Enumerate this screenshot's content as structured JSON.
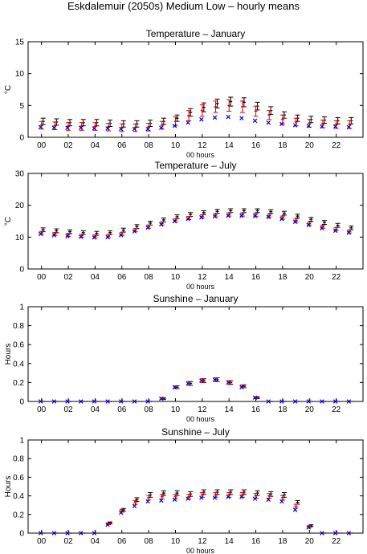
{
  "figure": {
    "title": "Eskdalemuir (2050s) Medium Low – hourly means"
  },
  "legend_colors": {
    "black": "#000000",
    "red": "#e00000",
    "blue": "#0000e0"
  },
  "chart_data": [
    {
      "type": "scatter",
      "title": "Temperature – January",
      "xlabel": "00 hours",
      "ylabel": "°C",
      "xlim": [
        -1,
        24
      ],
      "ylim": [
        0,
        15
      ],
      "yticks": [
        0,
        5,
        10,
        15
      ],
      "xticks": [
        "00",
        "02",
        "04",
        "06",
        "08",
        "10",
        "12",
        "14",
        "16",
        "18",
        "20",
        "22"
      ],
      "x": [
        0,
        1,
        2,
        3,
        4,
        5,
        6,
        7,
        8,
        9,
        10,
        11,
        12,
        13,
        14,
        15,
        16,
        17,
        18,
        19,
        20,
        21,
        22,
        23
      ],
      "series": [
        {
          "color": "black",
          "marker": "errorbar",
          "values": [
            2.5,
            2.4,
            2.3,
            2.3,
            2.3,
            2.2,
            2.1,
            2.1,
            2.2,
            2.5,
            3.0,
            3.9,
            4.7,
            5.3,
            5.6,
            5.5,
            4.9,
            4.2,
            3.5,
            3.0,
            2.8,
            2.7,
            2.6,
            2.6
          ],
          "errors": [
            0.5,
            0.5,
            0.5,
            0.5,
            0.5,
            0.5,
            0.5,
            0.5,
            0.5,
            0.5,
            0.5,
            0.6,
            0.7,
            0.7,
            0.7,
            0.7,
            0.6,
            0.6,
            0.5,
            0.5,
            0.5,
            0.5,
            0.5,
            0.5
          ]
        },
        {
          "color": "red",
          "marker": "errorbar",
          "values": [
            1.9,
            1.8,
            1.7,
            1.7,
            1.7,
            1.6,
            1.5,
            1.5,
            1.6,
            1.9,
            2.5,
            3.4,
            4.2,
            4.8,
            5.0,
            4.8,
            4.1,
            3.5,
            2.8,
            2.4,
            2.2,
            2.1,
            2.0,
            2.0
          ],
          "errors": [
            0.6,
            0.6,
            0.6,
            0.6,
            0.6,
            0.6,
            0.6,
            0.6,
            0.6,
            0.6,
            0.7,
            0.8,
            0.9,
            0.9,
            0.9,
            0.9,
            0.8,
            0.7,
            0.7,
            0.6,
            0.6,
            0.6,
            0.6,
            0.6
          ]
        },
        {
          "color": "blue",
          "marker": "x",
          "values": [
            1.6,
            1.5,
            1.5,
            1.5,
            1.4,
            1.4,
            1.3,
            1.3,
            1.3,
            1.5,
            1.8,
            2.3,
            2.8,
            3.1,
            3.2,
            3.0,
            2.6,
            2.3,
            2.1,
            1.9,
            1.8,
            1.7,
            1.7,
            1.6
          ]
        }
      ]
    },
    {
      "type": "scatter",
      "title": "Temperature – July",
      "xlabel": "00 hours",
      "ylabel": "°C",
      "xlim": [
        -1,
        24
      ],
      "ylim": [
        0,
        30
      ],
      "yticks": [
        0,
        10,
        20,
        30
      ],
      "xticks": [
        "00",
        "02",
        "04",
        "06",
        "08",
        "10",
        "12",
        "14",
        "16",
        "18",
        "20",
        "22"
      ],
      "x": [
        0,
        1,
        2,
        3,
        4,
        5,
        6,
        7,
        8,
        9,
        10,
        11,
        12,
        13,
        14,
        15,
        16,
        17,
        18,
        19,
        20,
        21,
        22,
        23
      ],
      "series": [
        {
          "color": "black",
          "marker": "errorbar",
          "values": [
            12.3,
            12.0,
            11.7,
            11.4,
            11.2,
            11.4,
            12.2,
            13.3,
            14.4,
            15.4,
            16.4,
            17.1,
            17.7,
            18.1,
            18.3,
            18.3,
            18.3,
            18.0,
            17.5,
            16.6,
            15.6,
            14.6,
            13.7,
            12.9
          ],
          "errors": [
            0.6,
            0.6,
            0.6,
            0.6,
            0.6,
            0.6,
            0.6,
            0.6,
            0.6,
            0.6,
            0.6,
            0.6,
            0.6,
            0.6,
            0.6,
            0.6,
            0.6,
            0.6,
            0.6,
            0.6,
            0.6,
            0.6,
            0.6,
            0.6
          ]
        },
        {
          "color": "red",
          "marker": "errorbar",
          "values": [
            11.3,
            11.0,
            10.7,
            10.4,
            10.2,
            10.3,
            11.0,
            12.2,
            13.3,
            14.3,
            15.3,
            16.0,
            16.5,
            16.9,
            17.1,
            17.1,
            17.0,
            16.7,
            16.1,
            15.2,
            14.2,
            13.3,
            12.5,
            11.8
          ],
          "errors": [
            0.5,
            0.5,
            0.5,
            0.5,
            0.5,
            0.5,
            0.5,
            0.5,
            0.5,
            0.5,
            0.5,
            0.5,
            0.5,
            0.5,
            0.5,
            0.5,
            0.5,
            0.5,
            0.5,
            0.5,
            0.5,
            0.5,
            0.5,
            0.5
          ]
        },
        {
          "color": "blue",
          "marker": "x",
          "values": [
            11.0,
            10.6,
            10.3,
            10.1,
            9.9,
            10.0,
            10.6,
            11.8,
            13.0,
            14.0,
            15.0,
            15.7,
            16.2,
            16.5,
            16.7,
            16.7,
            16.6,
            16.3,
            15.7,
            14.8,
            13.8,
            12.8,
            12.0,
            11.4
          ]
        }
      ]
    },
    {
      "type": "scatter",
      "title": "Sunshine – January",
      "xlabel": "00 hours",
      "ylabel": "Hours",
      "xlim": [
        -1,
        24
      ],
      "ylim": [
        0,
        1
      ],
      "yticks": [
        0,
        0.2,
        0.4,
        0.6,
        0.8,
        1
      ],
      "xticks": [
        "00",
        "02",
        "04",
        "06",
        "08",
        "10",
        "12",
        "14",
        "16",
        "18",
        "20",
        "22"
      ],
      "x": [
        0,
        1,
        2,
        3,
        4,
        5,
        6,
        7,
        8,
        9,
        10,
        11,
        12,
        13,
        14,
        15,
        16,
        17,
        18,
        19,
        20,
        21,
        22,
        23
      ],
      "series": [
        {
          "color": "black",
          "marker": "errorbar",
          "values": [
            0,
            0,
            0,
            0,
            0,
            0,
            0,
            0,
            0,
            0.03,
            0.15,
            0.19,
            0.22,
            0.23,
            0.2,
            0.16,
            0.04,
            0,
            0,
            0,
            0,
            0,
            0,
            0
          ],
          "errors": [
            0,
            0,
            0,
            0,
            0,
            0,
            0,
            0,
            0,
            0.01,
            0.015,
            0.02,
            0.02,
            0.02,
            0.02,
            0.015,
            0.01,
            0,
            0,
            0,
            0,
            0,
            0,
            0
          ]
        },
        {
          "color": "red",
          "marker": "errorbar",
          "values": [
            0,
            0,
            0,
            0,
            0,
            0,
            0,
            0,
            0,
            0.03,
            0.15,
            0.19,
            0.22,
            0.23,
            0.2,
            0.16,
            0.04,
            0,
            0,
            0,
            0,
            0,
            0,
            0
          ],
          "errors": [
            0,
            0,
            0,
            0,
            0,
            0,
            0,
            0,
            0,
            0.01,
            0.015,
            0.02,
            0.02,
            0.02,
            0.02,
            0.015,
            0.01,
            0,
            0,
            0,
            0,
            0,
            0,
            0
          ]
        },
        {
          "color": "blue",
          "marker": "x",
          "values": [
            0,
            0,
            0,
            0,
            0,
            0,
            0,
            0,
            0,
            0.03,
            0.15,
            0.19,
            0.22,
            0.23,
            0.2,
            0.15,
            0.04,
            0,
            0,
            0,
            0,
            0,
            0,
            0
          ]
        }
      ]
    },
    {
      "type": "scatter",
      "title": "Sunshine – July",
      "xlabel": "00 hours",
      "ylabel": "Hours",
      "xlim": [
        -1,
        24
      ],
      "ylim": [
        0,
        1
      ],
      "yticks": [
        0,
        0.2,
        0.4,
        0.6,
        0.8,
        1
      ],
      "xticks": [
        "00",
        "02",
        "04",
        "06",
        "08",
        "10",
        "12",
        "14",
        "16",
        "18",
        "20",
        "22"
      ],
      "x": [
        0,
        1,
        2,
        3,
        4,
        5,
        6,
        7,
        8,
        9,
        10,
        11,
        12,
        13,
        14,
        15,
        16,
        17,
        18,
        19,
        20,
        21,
        22,
        23
      ],
      "series": [
        {
          "color": "black",
          "marker": "errorbar",
          "values": [
            0,
            0,
            0,
            0,
            0,
            0.11,
            0.25,
            0.36,
            0.41,
            0.43,
            0.43,
            0.42,
            0.44,
            0.44,
            0.44,
            0.44,
            0.43,
            0.42,
            0.41,
            0.33,
            0.08,
            0,
            0,
            0
          ],
          "errors": [
            0,
            0,
            0,
            0,
            0,
            0.01,
            0.015,
            0.02,
            0.025,
            0.025,
            0.025,
            0.025,
            0.025,
            0.025,
            0.025,
            0.025,
            0.025,
            0.025,
            0.025,
            0.02,
            0.01,
            0,
            0,
            0
          ]
        },
        {
          "color": "red",
          "marker": "errorbar",
          "values": [
            0,
            0,
            0,
            0,
            0,
            0.1,
            0.24,
            0.33,
            0.38,
            0.39,
            0.39,
            0.39,
            0.41,
            0.41,
            0.41,
            0.41,
            0.4,
            0.4,
            0.38,
            0.29,
            0.07,
            0,
            0,
            0
          ],
          "errors": [
            0,
            0,
            0,
            0,
            0,
            0.01,
            0.015,
            0.02,
            0.025,
            0.025,
            0.025,
            0.025,
            0.025,
            0.025,
            0.025,
            0.025,
            0.025,
            0.025,
            0.025,
            0.02,
            0.01,
            0,
            0,
            0
          ]
        },
        {
          "color": "blue",
          "marker": "x",
          "values": [
            0,
            0,
            0,
            0,
            0,
            0.09,
            0.22,
            0.29,
            0.34,
            0.35,
            0.36,
            0.37,
            0.38,
            0.38,
            0.39,
            0.39,
            0.37,
            0.36,
            0.34,
            0.25,
            0.06,
            0,
            0,
            0
          ]
        }
      ]
    }
  ]
}
